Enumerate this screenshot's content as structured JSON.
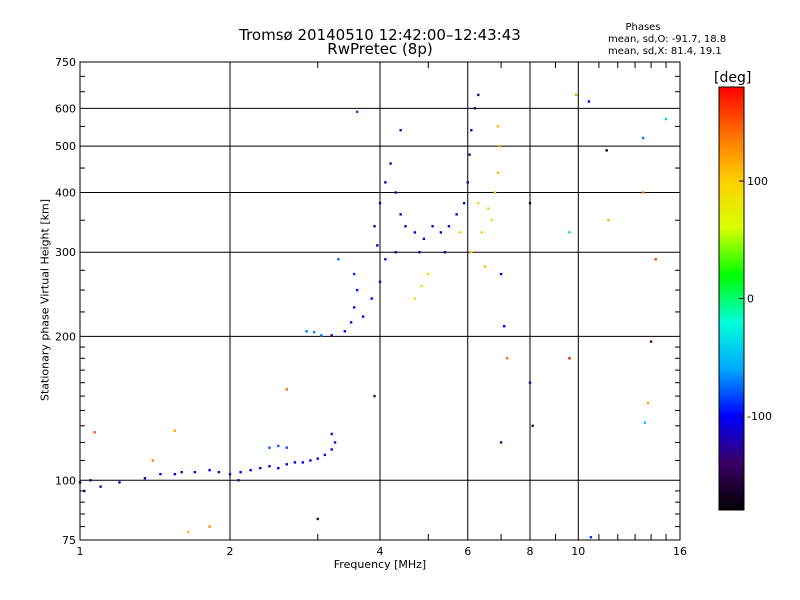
{
  "header": {
    "title": "Tromsø 20140510 12:42:00–12:43:43",
    "subtitle": "RwPretec (8p)",
    "phase_heading": "Phases",
    "phase_o": "mean, sd,O: -91.7, 18.8",
    "phase_x": "mean, sd,X: 81.4, 19.1"
  },
  "colorbar": {
    "unit_label": "[deg]",
    "range": [
      -180,
      180
    ],
    "ticks": [
      {
        "value": 100,
        "label": "100"
      },
      {
        "value": 0,
        "label": "0"
      },
      {
        "value": -100,
        "label": "-100"
      }
    ],
    "colors": [
      "#000000",
      "#3a0066",
      "#0000ff",
      "#00a8ff",
      "#00ffd8",
      "#00ff00",
      "#d8ff00",
      "#ffd000",
      "#ff7000",
      "#ff0000"
    ]
  },
  "chart_data": {
    "type": "scatter",
    "title": "Tromsø 20140510 12:42:00–12:43:43",
    "subtitle": "RwPretec (8p)",
    "xlabel": "Frequency [MHz]",
    "ylabel": "Stationary phase Virtual Height [km]",
    "x_scale": "log",
    "y_scale": "log",
    "xlim": [
      1,
      16
    ],
    "ylim": [
      75,
      750
    ],
    "grid": true,
    "x_ticks": [
      {
        "value": 1,
        "label": "1"
      },
      {
        "value": 2,
        "label": "2"
      },
      {
        "value": 4,
        "label": "4"
      },
      {
        "value": 6,
        "label": "6"
      },
      {
        "value": 8,
        "label": "8"
      },
      {
        "value": 10,
        "label": "10"
      },
      {
        "value": 16,
        "label": "16"
      }
    ],
    "y_ticks": [
      {
        "value": 75,
        "label": "75"
      },
      {
        "value": 100,
        "label": "100"
      },
      {
        "value": 200,
        "label": "200"
      },
      {
        "value": 300,
        "label": "300"
      },
      {
        "value": 400,
        "label": "400"
      },
      {
        "value": 500,
        "label": "500"
      },
      {
        "value": 600,
        "label": "600"
      },
      {
        "value": 750,
        "label": "750"
      }
    ],
    "series": [
      {
        "color_by": "phase_deg",
        "points": [
          {
            "x": 1.0,
            "y": 99,
            "phase": -115
          },
          {
            "x": 1.02,
            "y": 95,
            "phase": -110
          },
          {
            "x": 1.05,
            "y": 100,
            "phase": -120
          },
          {
            "x": 1.1,
            "y": 97,
            "phase": -112
          },
          {
            "x": 1.2,
            "y": 99,
            "phase": -108
          },
          {
            "x": 1.35,
            "y": 101,
            "phase": -115
          },
          {
            "x": 1.45,
            "y": 103,
            "phase": -110
          },
          {
            "x": 1.55,
            "y": 103,
            "phase": -105
          },
          {
            "x": 1.6,
            "y": 104,
            "phase": -112
          },
          {
            "x": 1.7,
            "y": 104,
            "phase": -108
          },
          {
            "x": 1.82,
            "y": 105,
            "phase": -104
          },
          {
            "x": 1.9,
            "y": 104,
            "phase": -110
          },
          {
            "x": 2.0,
            "y": 103,
            "phase": -112
          },
          {
            "x": 2.1,
            "y": 104,
            "phase": -106
          },
          {
            "x": 2.2,
            "y": 105,
            "phase": -108
          },
          {
            "x": 2.3,
            "y": 106,
            "phase": -110
          },
          {
            "x": 2.4,
            "y": 107,
            "phase": -104
          },
          {
            "x": 2.5,
            "y": 106,
            "phase": -106
          },
          {
            "x": 2.6,
            "y": 108,
            "phase": -110
          },
          {
            "x": 2.7,
            "y": 109,
            "phase": -104
          },
          {
            "x": 2.8,
            "y": 109,
            "phase": -108
          },
          {
            "x": 2.9,
            "y": 110,
            "phase": -106
          },
          {
            "x": 3.0,
            "y": 111,
            "phase": -110
          },
          {
            "x": 3.1,
            "y": 113,
            "phase": -104
          },
          {
            "x": 3.2,
            "y": 116,
            "phase": -100
          },
          {
            "x": 3.25,
            "y": 120,
            "phase": -96
          },
          {
            "x": 3.2,
            "y": 125,
            "phase": -94
          },
          {
            "x": 2.4,
            "y": 117,
            "phase": -80
          },
          {
            "x": 2.5,
            "y": 118,
            "phase": -76
          },
          {
            "x": 2.6,
            "y": 117,
            "phase": -82
          },
          {
            "x": 2.85,
            "y": 205,
            "phase": -70
          },
          {
            "x": 2.95,
            "y": 204,
            "phase": -66
          },
          {
            "x": 3.05,
            "y": 201,
            "phase": -72
          },
          {
            "x": 3.2,
            "y": 201,
            "phase": -120
          },
          {
            "x": 3.4,
            "y": 205,
            "phase": -100
          },
          {
            "x": 3.5,
            "y": 214,
            "phase": -98
          },
          {
            "x": 3.55,
            "y": 230,
            "phase": -96
          },
          {
            "x": 3.6,
            "y": 250,
            "phase": -94
          },
          {
            "x": 3.55,
            "y": 270,
            "phase": -90
          },
          {
            "x": 3.3,
            "y": 290,
            "phase": -75
          },
          {
            "x": 3.7,
            "y": 220,
            "phase": -100
          },
          {
            "x": 3.85,
            "y": 240,
            "phase": -100
          },
          {
            "x": 4.0,
            "y": 260,
            "phase": -100
          },
          {
            "x": 4.1,
            "y": 290,
            "phase": -110
          },
          {
            "x": 3.95,
            "y": 310,
            "phase": -115
          },
          {
            "x": 3.9,
            "y": 340,
            "phase": -118
          },
          {
            "x": 4.0,
            "y": 380,
            "phase": -120
          },
          {
            "x": 4.1,
            "y": 420,
            "phase": -125
          },
          {
            "x": 4.2,
            "y": 460,
            "phase": -128
          },
          {
            "x": 4.3,
            "y": 400,
            "phase": -118
          },
          {
            "x": 4.4,
            "y": 360,
            "phase": -115
          },
          {
            "x": 4.5,
            "y": 340,
            "phase": -112
          },
          {
            "x": 4.7,
            "y": 330,
            "phase": -110
          },
          {
            "x": 4.9,
            "y": 320,
            "phase": -112
          },
          {
            "x": 5.1,
            "y": 340,
            "phase": -115
          },
          {
            "x": 5.3,
            "y": 330,
            "phase": -110
          },
          {
            "x": 5.5,
            "y": 340,
            "phase": -112
          },
          {
            "x": 5.7,
            "y": 360,
            "phase": -115
          },
          {
            "x": 5.9,
            "y": 380,
            "phase": -118
          },
          {
            "x": 6.0,
            "y": 420,
            "phase": -120
          },
          {
            "x": 6.05,
            "y": 480,
            "phase": -122
          },
          {
            "x": 6.1,
            "y": 540,
            "phase": -125
          },
          {
            "x": 6.2,
            "y": 600,
            "phase": -130
          },
          {
            "x": 6.3,
            "y": 640,
            "phase": -132
          },
          {
            "x": 4.3,
            "y": 300,
            "phase": -130
          },
          {
            "x": 4.8,
            "y": 300,
            "phase": -128
          },
          {
            "x": 5.4,
            "y": 300,
            "phase": -126
          },
          {
            "x": 4.4,
            "y": 540,
            "phase": -125
          },
          {
            "x": 4.7,
            "y": 240,
            "phase": 90
          },
          {
            "x": 4.85,
            "y": 255,
            "phase": 95
          },
          {
            "x": 5.0,
            "y": 270,
            "phase": 100
          },
          {
            "x": 5.8,
            "y": 330,
            "phase": 100
          },
          {
            "x": 6.1,
            "y": 300,
            "phase": 95
          },
          {
            "x": 6.4,
            "y": 330,
            "phase": 100
          },
          {
            "x": 6.6,
            "y": 370,
            "phase": 105
          },
          {
            "x": 6.8,
            "y": 400,
            "phase": 108
          },
          {
            "x": 6.9,
            "y": 440,
            "phase": 110
          },
          {
            "x": 6.95,
            "y": 500,
            "phase": 112
          },
          {
            "x": 6.9,
            "y": 550,
            "phase": 110
          },
          {
            "x": 6.5,
            "y": 280,
            "phase": 105
          },
          {
            "x": 6.7,
            "y": 350,
            "phase": 100
          },
          {
            "x": 6.3,
            "y": 380,
            "phase": 98
          },
          {
            "x": 1.07,
            "y": 126,
            "phase": 150
          },
          {
            "x": 1.4,
            "y": 110,
            "phase": 130
          },
          {
            "x": 1.55,
            "y": 127,
            "phase": 120
          },
          {
            "x": 1.65,
            "y": 78,
            "phase": 110
          },
          {
            "x": 1.82,
            "y": 80,
            "phase": 130
          },
          {
            "x": 2.08,
            "y": 100,
            "phase": -140
          },
          {
            "x": 2.6,
            "y": 155,
            "phase": 140
          },
          {
            "x": 3.0,
            "y": 83,
            "phase": -150
          },
          {
            "x": 3.6,
            "y": 590,
            "phase": -80
          },
          {
            "x": 3.9,
            "y": 150,
            "phase": -140
          },
          {
            "x": 7.0,
            "y": 270,
            "phase": -110
          },
          {
            "x": 7.1,
            "y": 210,
            "phase": -100
          },
          {
            "x": 7.2,
            "y": 180,
            "phase": 140
          },
          {
            "x": 7.0,
            "y": 120,
            "phase": -140
          },
          {
            "x": 8.0,
            "y": 160,
            "phase": -140
          },
          {
            "x": 8.1,
            "y": 130,
            "phase": -150
          },
          {
            "x": 8.0,
            "y": 380,
            "phase": -150
          },
          {
            "x": 9.6,
            "y": 330,
            "phase": -40
          },
          {
            "x": 9.6,
            "y": 180,
            "phase": 170
          },
          {
            "x": 10.5,
            "y": 620,
            "phase": -100
          },
          {
            "x": 11.4,
            "y": 490,
            "phase": -170
          },
          {
            "x": 11.5,
            "y": 350,
            "phase": 110
          },
          {
            "x": 13.5,
            "y": 520,
            "phase": -70
          },
          {
            "x": 13.5,
            "y": 400,
            "phase": 130
          },
          {
            "x": 14.0,
            "y": 195,
            "phase": -140
          },
          {
            "x": 13.8,
            "y": 145,
            "phase": 120
          },
          {
            "x": 13.6,
            "y": 132,
            "phase": -50
          },
          {
            "x": 15.0,
            "y": 570,
            "phase": -40
          },
          {
            "x": 14.3,
            "y": 290,
            "phase": 160
          },
          {
            "x": 9.9,
            "y": 640,
            "phase": 120
          },
          {
            "x": 10.6,
            "y": 76,
            "phase": -90
          }
        ]
      }
    ]
  }
}
